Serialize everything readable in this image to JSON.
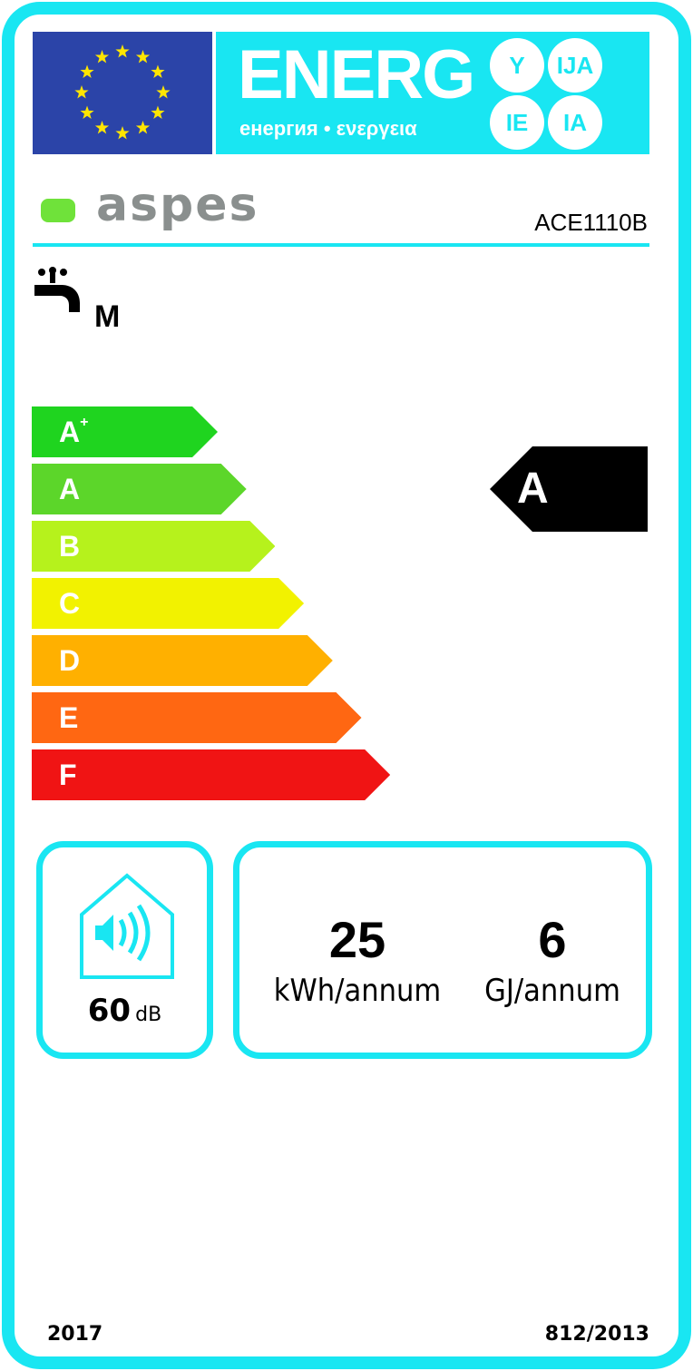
{
  "header": {
    "title": "ENERG",
    "subtitle": "енергия • ενεργεια",
    "suffixes": [
      "Y",
      "IJA",
      "IE",
      "IA"
    ]
  },
  "brand": {
    "logo_text": "aspes",
    "model": "ACE1110B"
  },
  "profile": {
    "icon": "water-tap-icon",
    "load_profile": "M"
  },
  "scale": {
    "classes": [
      {
        "label": "A",
        "sup": "+",
        "color": "#1fd41f"
      },
      {
        "label": "A",
        "color": "#5cd62a"
      },
      {
        "label": "B",
        "color": "#b6f21c"
      },
      {
        "label": "C",
        "color": "#f2f200"
      },
      {
        "label": "D",
        "color": "#ffb000"
      },
      {
        "label": "E",
        "color": "#ff6712"
      },
      {
        "label": "F",
        "color": "#f01414"
      }
    ],
    "rating": "A"
  },
  "noise": {
    "value": "60",
    "unit": "dB",
    "icon": "sound-house-icon"
  },
  "consumption": {
    "electricity_value": "25",
    "electricity_unit": "kWh/annum",
    "fuel_value": "6",
    "fuel_unit": "GJ/annum"
  },
  "footer": {
    "year": "2017",
    "regulation": "812/2013"
  },
  "colors": {
    "frame": "#19e6f2",
    "flag": "#2b44a8"
  }
}
